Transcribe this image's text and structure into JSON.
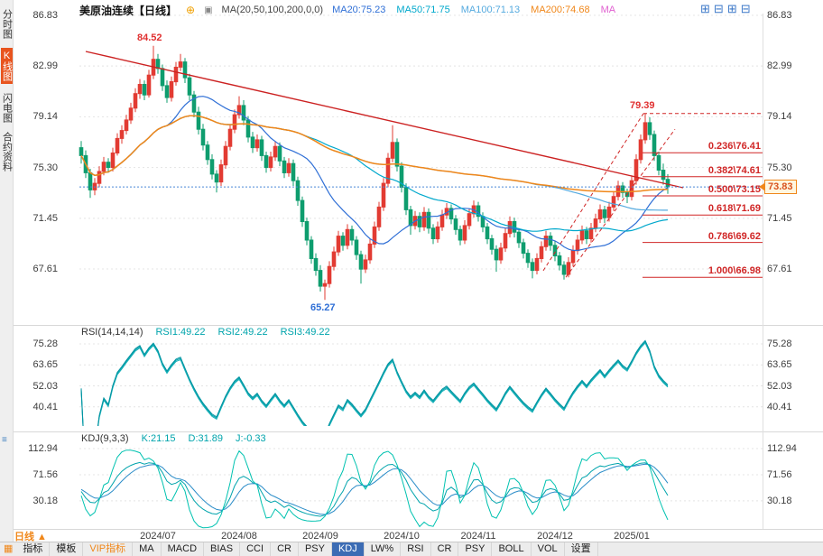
{
  "sidebar": {
    "items": [
      {
        "label": "分时图",
        "active": false
      },
      {
        "label": "K线图",
        "active": true
      },
      {
        "label": "闪电图",
        "active": false
      },
      {
        "label": "合约资料",
        "active": false
      }
    ]
  },
  "header": {
    "title": "美原油连续【日线】",
    "sync_icon": "⊕",
    "indicator_icon": "▣",
    "ma_params": "MA(20,50,100,200,0,0)",
    "ma_values": [
      {
        "label": "MA20:75.23",
        "color": "#2f6fd6"
      },
      {
        "label": "MA50:71.75",
        "color": "#00a8cc"
      },
      {
        "label": "MA100:71.13",
        "color": "#55aadf"
      },
      {
        "label": "MA200:74.68",
        "color": "#f0871a"
      },
      {
        "label": "MA",
        "color": "#e060d0"
      }
    ],
    "layout_icons": [
      {
        "glyph": "⊞",
        "name": "layout-2x2-icon"
      },
      {
        "glyph": "⊟",
        "name": "layout-split-h-icon"
      },
      {
        "glyph": "⊞",
        "name": "layout-grid-icon"
      },
      {
        "glyph": "⊟",
        "name": "layout-split-icon"
      }
    ]
  },
  "colors": {
    "up": "#e23b32",
    "down": "#0e9d6e",
    "fib": "#d02626",
    "trend": "#cc2222",
    "price_line": "#4a86d8",
    "price_tag": "#f0871a",
    "grid": "#e4e4e4",
    "rsi_lines": [
      "#00a4ac",
      "#18b0b8",
      "#0092a0"
    ],
    "kdj_lines": [
      "#00a4ac",
      "#2a8cc8",
      "#00c2b0"
    ],
    "ma_lines": [
      "#2f6fd6",
      "#00a8cc",
      "#55aadf",
      "#f0871a"
    ]
  },
  "chart_data": {
    "type": "candlestick",
    "title": "美原油连续 日线 (US Crude Oil Continuous, Daily)",
    "price_axis": [
      "86.83",
      "82.99",
      "79.14",
      "75.30",
      "71.45",
      "67.61"
    ],
    "months": [
      {
        "label": "2024/07",
        "index": 17
      },
      {
        "label": "2024/08",
        "index": 35
      },
      {
        "label": "2024/09",
        "index": 53
      },
      {
        "label": "2024/10",
        "index": 71
      },
      {
        "label": "2024/11",
        "index": 88
      },
      {
        "label": "2024/12",
        "index": 105
      },
      {
        "label": "2025/01",
        "index": 122
      }
    ],
    "ma_periods": [
      20,
      50,
      100,
      200
    ],
    "annotations": {
      "peak": "84.52",
      "high": "79.39",
      "low": "65.27",
      "last": "73.83"
    },
    "fib": {
      "low": 66.98,
      "high": 79.39,
      "levels": [
        {
          "label": "0.236\\76.41",
          "value": 76.41
        },
        {
          "label": "0.382\\74.61",
          "value": 74.61
        },
        {
          "label": "0.500\\73.15",
          "value": 73.15
        },
        {
          "label": "0.618\\71.69",
          "value": 71.69
        },
        {
          "label": "0.786\\69.62",
          "value": 69.62
        },
        {
          "label": "1.000\\66.98",
          "value": 66.98
        }
      ]
    },
    "rsi": {
      "params": "RSI(14,14,14)",
      "values": [
        "RSI1:49.22",
        "RSI2:49.22",
        "RSI3:49.22"
      ],
      "axis": [
        "75.28",
        "63.65",
        "52.03",
        "40.41"
      ],
      "period": 14
    },
    "kdj": {
      "params": "KDJ(9,3,3)",
      "values": [
        "K:21.15",
        "D:31.89",
        "J:-0.33"
      ],
      "axis": [
        "112.94",
        "71.56",
        "30.18"
      ],
      "period": 9
    },
    "candles": [
      [
        76.8,
        77.3,
        75.6,
        76.2
      ],
      [
        76.2,
        76.6,
        74.5,
        74.9
      ],
      [
        74.9,
        75.2,
        73.0,
        73.6
      ],
      [
        73.6,
        74.5,
        73.2,
        74.1
      ],
      [
        74.1,
        75.4,
        73.8,
        75.0
      ],
      [
        75.0,
        76.1,
        74.7,
        75.7
      ],
      [
        75.7,
        76.0,
        74.9,
        75.3
      ],
      [
        75.3,
        76.8,
        75.0,
        76.4
      ],
      [
        76.4,
        77.9,
        76.2,
        77.5
      ],
      [
        77.5,
        78.5,
        77.1,
        78.1
      ],
      [
        78.1,
        79.3,
        77.8,
        78.9
      ],
      [
        78.9,
        80.2,
        78.6,
        79.8
      ],
      [
        79.8,
        81.3,
        79.5,
        80.9
      ],
      [
        80.9,
        82.0,
        80.5,
        81.6
      ],
      [
        81.6,
        81.9,
        80.4,
        80.8
      ],
      [
        80.8,
        82.7,
        80.6,
        82.3
      ],
      [
        82.3,
        84.52,
        82.0,
        83.5
      ],
      [
        83.5,
        83.9,
        82.4,
        82.8
      ],
      [
        82.8,
        83.1,
        81.1,
        81.5
      ],
      [
        81.5,
        81.9,
        80.2,
        80.6
      ],
      [
        80.6,
        82.2,
        80.3,
        81.8
      ],
      [
        81.8,
        83.3,
        81.5,
        82.9
      ],
      [
        82.9,
        83.9,
        82.6,
        83.3
      ],
      [
        83.3,
        83.6,
        81.7,
        82.1
      ],
      [
        82.1,
        82.4,
        80.4,
        80.8
      ],
      [
        80.8,
        81.1,
        79.1,
        79.5
      ],
      [
        79.5,
        79.9,
        77.8,
        78.2
      ],
      [
        78.2,
        78.6,
        76.6,
        77.0
      ],
      [
        77.0,
        77.3,
        75.5,
        75.9
      ],
      [
        75.9,
        76.3,
        74.4,
        74.8
      ],
      [
        74.8,
        75.1,
        73.4,
        74.2
      ],
      [
        74.2,
        75.9,
        73.9,
        75.5
      ],
      [
        75.5,
        77.3,
        75.2,
        76.9
      ],
      [
        76.9,
        78.6,
        76.6,
        78.2
      ],
      [
        78.2,
        79.7,
        77.9,
        79.3
      ],
      [
        79.3,
        80.7,
        79.0,
        80.0
      ],
      [
        80.0,
        80.4,
        78.5,
        78.9
      ],
      [
        78.9,
        79.2,
        77.2,
        77.6
      ],
      [
        77.6,
        78.0,
        76.4,
        76.8
      ],
      [
        76.8,
        77.8,
        76.5,
        77.4
      ],
      [
        77.4,
        77.7,
        75.8,
        76.2
      ],
      [
        76.2,
        76.5,
        74.9,
        75.3
      ],
      [
        75.3,
        76.5,
        75.0,
        76.1
      ],
      [
        76.1,
        77.3,
        75.8,
        76.9
      ],
      [
        76.9,
        77.2,
        75.4,
        75.8
      ],
      [
        75.8,
        76.1,
        74.5,
        74.9
      ],
      [
        74.9,
        76.0,
        74.6,
        75.6
      ],
      [
        75.6,
        75.9,
        73.9,
        74.3
      ],
      [
        74.3,
        74.6,
        72.4,
        72.8
      ],
      [
        72.8,
        73.1,
        70.8,
        71.2
      ],
      [
        71.2,
        71.5,
        69.4,
        69.8
      ],
      [
        69.8,
        70.1,
        68.0,
        68.4
      ],
      [
        68.4,
        68.8,
        67.1,
        67.5
      ],
      [
        67.5,
        67.9,
        65.9,
        66.3
      ],
      [
        66.3,
        66.8,
        65.27,
        66.5
      ],
      [
        66.5,
        68.2,
        66.2,
        67.8
      ],
      [
        67.8,
        69.3,
        67.5,
        68.9
      ],
      [
        68.9,
        70.5,
        68.6,
        70.1
      ],
      [
        70.1,
        70.4,
        69.0,
        69.4
      ],
      [
        69.4,
        71.0,
        69.1,
        70.6
      ],
      [
        70.6,
        70.9,
        69.4,
        69.8
      ],
      [
        69.8,
        70.1,
        68.3,
        68.7
      ],
      [
        68.7,
        69.0,
        66.5,
        67.6
      ],
      [
        67.6,
        68.7,
        67.3,
        68.3
      ],
      [
        68.3,
        69.9,
        68.0,
        69.5
      ],
      [
        69.5,
        71.2,
        69.2,
        70.8
      ],
      [
        70.8,
        72.7,
        70.5,
        72.3
      ],
      [
        72.3,
        74.5,
        72.0,
        74.1
      ],
      [
        74.1,
        76.4,
        73.8,
        76.0
      ],
      [
        76.0,
        78.5,
        75.7,
        77.2
      ],
      [
        77.2,
        77.5,
        75.0,
        75.4
      ],
      [
        75.4,
        75.7,
        73.4,
        73.8
      ],
      [
        73.8,
        74.1,
        71.7,
        72.1
      ],
      [
        72.1,
        72.4,
        70.2,
        70.9
      ],
      [
        70.9,
        72.0,
        70.6,
        71.6
      ],
      [
        71.6,
        71.9,
        70.4,
        70.8
      ],
      [
        70.8,
        72.3,
        70.5,
        71.9
      ],
      [
        71.9,
        72.2,
        70.3,
        70.7
      ],
      [
        70.7,
        71.0,
        69.5,
        69.9
      ],
      [
        69.9,
        71.2,
        69.6,
        70.8
      ],
      [
        70.8,
        72.1,
        70.5,
        71.7
      ],
      [
        71.7,
        72.6,
        71.4,
        72.2
      ],
      [
        72.2,
        72.5,
        71.0,
        71.4
      ],
      [
        71.4,
        71.7,
        70.2,
        70.6
      ],
      [
        70.6,
        70.9,
        69.4,
        69.8
      ],
      [
        69.8,
        71.3,
        69.5,
        70.9
      ],
      [
        70.9,
        72.2,
        70.6,
        71.8
      ],
      [
        71.8,
        72.8,
        71.5,
        72.4
      ],
      [
        72.4,
        72.7,
        71.2,
        71.6
      ],
      [
        71.6,
        71.9,
        70.4,
        70.8
      ],
      [
        70.8,
        71.1,
        69.5,
        69.9
      ],
      [
        69.9,
        70.2,
        68.7,
        69.1
      ],
      [
        69.1,
        69.4,
        67.4,
        68.3
      ],
      [
        68.3,
        69.6,
        68.0,
        69.2
      ],
      [
        69.2,
        70.7,
        68.9,
        70.3
      ],
      [
        70.3,
        71.6,
        70.0,
        71.2
      ],
      [
        71.2,
        71.5,
        70.0,
        70.4
      ],
      [
        70.4,
        70.7,
        69.2,
        69.6
      ],
      [
        69.6,
        69.9,
        68.4,
        68.8
      ],
      [
        68.8,
        69.1,
        67.7,
        68.1
      ],
      [
        68.1,
        68.4,
        66.9,
        67.5
      ],
      [
        67.5,
        68.8,
        67.2,
        68.4
      ],
      [
        68.4,
        69.7,
        68.1,
        69.3
      ],
      [
        69.3,
        70.5,
        69.0,
        70.1
      ],
      [
        70.1,
        70.4,
        69.0,
        69.4
      ],
      [
        69.4,
        69.7,
        68.2,
        68.6
      ],
      [
        68.6,
        68.9,
        67.5,
        67.9
      ],
      [
        67.9,
        68.2,
        66.8,
        67.2
      ],
      [
        67.2,
        68.5,
        66.98,
        68.1
      ],
      [
        68.1,
        69.4,
        67.8,
        69.0
      ],
      [
        69.0,
        70.2,
        68.7,
        69.8
      ],
      [
        69.8,
        70.9,
        69.5,
        70.5
      ],
      [
        70.5,
        70.8,
        69.5,
        69.9
      ],
      [
        69.9,
        71.1,
        69.6,
        70.7
      ],
      [
        70.7,
        71.8,
        70.4,
        71.4
      ],
      [
        71.4,
        72.5,
        71.1,
        72.1
      ],
      [
        72.1,
        72.4,
        71.1,
        71.5
      ],
      [
        71.5,
        72.7,
        71.2,
        72.3
      ],
      [
        72.3,
        73.5,
        72.0,
        73.1
      ],
      [
        73.1,
        74.3,
        72.8,
        73.9
      ],
      [
        73.9,
        74.2,
        73.0,
        73.4
      ],
      [
        73.4,
        73.7,
        72.6,
        73.1
      ],
      [
        73.1,
        74.7,
        72.8,
        74.3
      ],
      [
        74.3,
        76.3,
        74.0,
        75.9
      ],
      [
        75.9,
        77.8,
        75.6,
        77.4
      ],
      [
        77.4,
        79.39,
        77.1,
        78.7
      ],
      [
        78.7,
        79.1,
        77.4,
        77.8
      ],
      [
        77.8,
        78.1,
        75.8,
        76.2
      ],
      [
        76.2,
        76.5,
        74.7,
        75.1
      ],
      [
        75.1,
        75.6,
        74.0,
        74.4
      ],
      [
        74.4,
        74.8,
        73.3,
        73.83
      ]
    ]
  },
  "toolbar": {
    "period_label": "日线 ▲",
    "menu_icon": "▦",
    "tabs": [
      {
        "label": "指标"
      },
      {
        "label": "模板"
      },
      {
        "label": "VIP指标",
        "vip": true
      },
      {
        "label": "MA"
      },
      {
        "label": "MACD"
      },
      {
        "label": "BIAS"
      },
      {
        "label": "CCI"
      },
      {
        "label": "CR"
      },
      {
        "label": "PSY"
      },
      {
        "label": "KDJ",
        "active": true
      },
      {
        "label": "LW%"
      },
      {
        "label": "RSI"
      },
      {
        "label": "CR"
      },
      {
        "label": "PSY"
      },
      {
        "label": "BOLL"
      },
      {
        "label": "VOL"
      },
      {
        "label": "设置"
      }
    ]
  },
  "panel_icons": {
    "kdj_toggle": "≡"
  }
}
